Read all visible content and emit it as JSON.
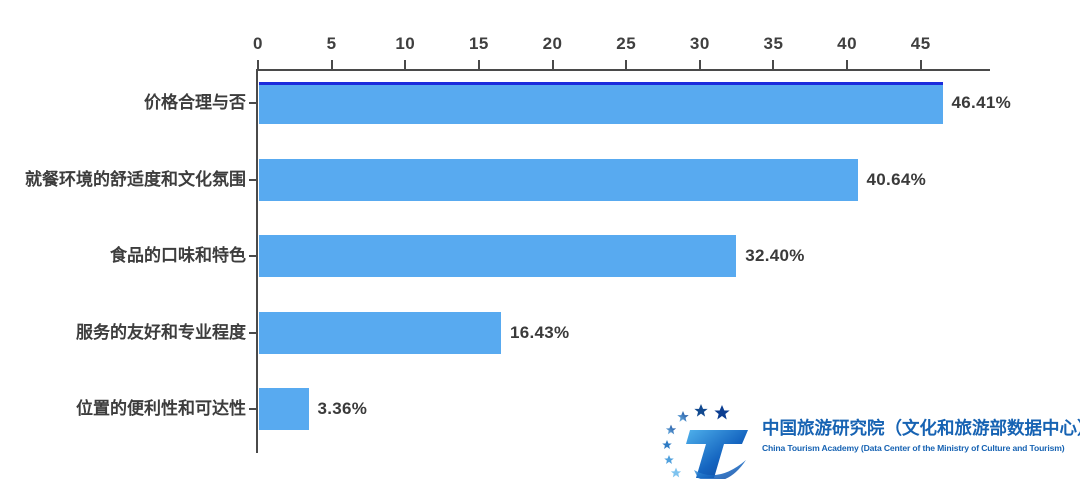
{
  "chart_data": {
    "type": "bar",
    "orientation": "horizontal",
    "title": "",
    "xlabel": "",
    "ylabel": "",
    "categories": [
      "价格合理与否",
      "就餐环境的舒适度和文化氛围",
      "食品的口味和特色",
      "服务的友好和专业程度",
      "位置的便利性和可达性"
    ],
    "values": [
      46.41,
      40.64,
      32.4,
      16.43,
      3.36
    ],
    "value_labels": [
      "46.41%",
      "40.64%",
      "32.40%",
      "16.43%",
      "3.36%"
    ],
    "x_ticks": [
      0,
      5,
      10,
      15,
      20,
      25,
      30,
      35,
      40,
      45
    ],
    "xlim": [
      0,
      49.7
    ],
    "grid": false,
    "legend": null,
    "bar_color": "#58aaf0",
    "first_bar_top_edge_color": "#1b2bdc",
    "axis_color": "#4a4a4a",
    "label_color": "#3d3d3d"
  },
  "footer_logo": {
    "name_cn": "中国旅游研究院（文化和旅游部数据中心）",
    "name_en": "China Tourism Academy (Data Center of the Ministry of Culture and Tourism)",
    "brand_color": "#1763b3",
    "emblem": "stars-and-t-emblem"
  }
}
